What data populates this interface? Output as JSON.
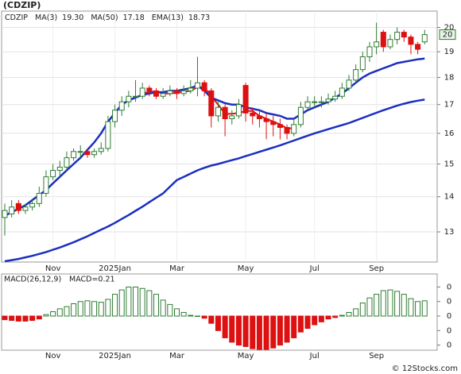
{
  "title": "(CDZIP)",
  "footer": "© 12Stocks.com",
  "chart_data": [
    {
      "type": "candlestick",
      "log_scale": true,
      "grid": true,
      "ticker": "CDZIP",
      "last_label": "20",
      "legend_color": "#2233bb",
      "categories": [
        null,
        null,
        null,
        null,
        null,
        null,
        null,
        "Nov",
        null,
        null,
        null,
        null,
        null,
        null,
        null,
        null,
        "2025Jan",
        null,
        null,
        null,
        null,
        null,
        null,
        null,
        null,
        "Mar",
        null,
        null,
        null,
        null,
        null,
        null,
        null,
        null,
        null,
        "May",
        null,
        null,
        null,
        null,
        null,
        null,
        null,
        null,
        null,
        "Jul",
        null,
        null,
        null,
        null,
        null,
        null,
        null,
        null,
        "Sep",
        null,
        null,
        null,
        null,
        null,
        null,
        null
      ],
      "open": [
        13.4,
        13.5,
        13.8,
        13.6,
        13.7,
        13.8,
        14.1,
        14.6,
        14.8,
        14.9,
        15.2,
        15.4,
        15.4,
        15.3,
        15.4,
        15.5,
        16.4,
        16.8,
        17.1,
        17.3,
        17.3,
        17.6,
        17.5,
        17.3,
        17.4,
        17.5,
        17.4,
        17.5,
        17.6,
        17.8,
        17.5,
        16.6,
        16.9,
        16.5,
        16.6,
        17.7,
        16.7,
        16.6,
        16.5,
        16.4,
        16.3,
        16.2,
        16.0,
        16.3,
        16.9,
        17.1,
        17.1,
        17.1,
        17.2,
        17.3,
        17.6,
        17.9,
        18.3,
        18.8,
        19.2,
        19.8,
        19.2,
        19.5,
        19.8,
        19.6,
        19.3,
        19.4
      ],
      "high": [
        13.8,
        13.9,
        13.9,
        13.8,
        13.9,
        14.3,
        14.8,
        15.0,
        15.1,
        15.4,
        15.5,
        15.6,
        15.5,
        15.5,
        15.7,
        16.6,
        17.0,
        17.3,
        17.5,
        17.9,
        17.8,
        17.7,
        17.6,
        17.6,
        17.7,
        17.6,
        17.7,
        17.9,
        18.8,
        17.9,
        17.6,
        17.1,
        17.0,
        16.8,
        17.2,
        17.8,
        16.9,
        16.8,
        16.7,
        16.6,
        16.5,
        16.3,
        16.5,
        17.1,
        17.3,
        17.3,
        17.3,
        17.4,
        17.5,
        17.8,
        18.1,
        18.5,
        19.0,
        19.4,
        20.2,
        19.9,
        19.7,
        20.0,
        19.9,
        19.7,
        19.4,
        19.9
      ],
      "low": [
        12.9,
        13.4,
        13.5,
        13.5,
        13.6,
        13.7,
        14.0,
        14.5,
        14.6,
        14.8,
        15.1,
        15.2,
        15.2,
        15.2,
        15.3,
        15.4,
        16.2,
        16.6,
        16.9,
        17.1,
        17.2,
        17.3,
        17.2,
        17.2,
        17.3,
        17.2,
        17.3,
        17.4,
        17.3,
        17.3,
        16.2,
        16.4,
        15.9,
        16.3,
        16.5,
        16.4,
        16.3,
        16.2,
        15.8,
        15.9,
        15.8,
        15.8,
        15.9,
        16.2,
        16.8,
        16.9,
        16.9,
        17.0,
        17.1,
        17.2,
        17.5,
        17.8,
        18.2,
        18.6,
        18.9,
        19.0,
        19.1,
        19.3,
        19.4,
        18.9,
        18.9,
        19.3
      ],
      "close": [
        13.6,
        13.7,
        13.6,
        13.7,
        13.8,
        14.1,
        14.6,
        14.8,
        14.9,
        15.2,
        15.4,
        15.4,
        15.3,
        15.4,
        15.5,
        16.4,
        16.8,
        17.1,
        17.3,
        17.3,
        17.6,
        17.5,
        17.3,
        17.4,
        17.5,
        17.4,
        17.5,
        17.6,
        17.8,
        17.5,
        16.6,
        16.9,
        16.5,
        16.6,
        17.0,
        16.7,
        16.6,
        16.5,
        16.4,
        16.3,
        16.2,
        16.0,
        16.3,
        16.9,
        17.1,
        17.1,
        17.1,
        17.2,
        17.3,
        17.6,
        17.9,
        18.3,
        18.8,
        19.2,
        19.4,
        19.2,
        19.5,
        19.8,
        19.6,
        19.3,
        19.1,
        19.7
      ],
      "up_color": "#2e7d32",
      "down_color": "#dd1111",
      "series": [
        {
          "name": "MA(3)",
          "last": "19.30",
          "color": "#dd1111",
          "width": 2,
          "values": [
            null,
            null,
            null,
            null,
            null,
            null,
            null,
            null,
            null,
            null,
            null,
            null,
            null,
            null,
            null,
            null,
            null,
            null,
            null,
            null,
            17.4,
            17.47,
            17.47,
            17.4,
            17.4,
            17.43,
            17.47,
            17.5,
            17.63,
            17.63,
            17.3,
            17.0,
            16.67,
            16.67,
            16.7,
            16.77,
            16.77,
            16.6,
            16.5,
            16.4,
            16.3,
            16.17,
            16.17,
            null,
            null,
            null,
            null,
            null,
            null,
            null,
            null,
            null,
            null,
            null,
            null,
            null,
            null,
            null,
            null,
            null,
            null,
            null
          ]
        },
        {
          "name": "MA(50)",
          "last": "17.18",
          "color": "#1a2fc0",
          "width": 2.5,
          "values": [
            12.22,
            12.25,
            12.28,
            12.32,
            12.36,
            12.41,
            12.46,
            12.52,
            12.58,
            12.65,
            12.72,
            12.8,
            12.88,
            12.97,
            13.06,
            13.15,
            13.25,
            13.36,
            13.47,
            13.59,
            13.71,
            13.84,
            13.97,
            14.1,
            14.3,
            14.5,
            14.6,
            14.7,
            14.8,
            14.88,
            14.95,
            15.0,
            15.06,
            15.12,
            15.18,
            15.25,
            15.32,
            15.39,
            15.46,
            15.53,
            15.6,
            15.68,
            15.76,
            15.84,
            15.92,
            16.0,
            16.07,
            16.14,
            16.21,
            16.28,
            16.35,
            16.44,
            16.53,
            16.62,
            16.71,
            16.8,
            16.88,
            16.96,
            17.03,
            17.09,
            17.14,
            17.18
          ]
        },
        {
          "name": "EMA(13)",
          "last": "18.73",
          "color": "#1a2fc0",
          "width": 2.5,
          "values": [
            13.45,
            13.55,
            13.65,
            13.75,
            13.9,
            14.05,
            14.2,
            14.4,
            14.6,
            14.8,
            15.0,
            15.2,
            15.45,
            15.7,
            16.0,
            16.4,
            16.7,
            17.0,
            17.15,
            17.25,
            17.35,
            17.4,
            17.45,
            17.45,
            17.5,
            17.5,
            17.55,
            17.6,
            17.7,
            17.5,
            17.25,
            17.15,
            17.05,
            17.0,
            17.0,
            16.9,
            16.85,
            16.8,
            16.7,
            16.65,
            16.6,
            16.5,
            16.5,
            16.65,
            16.8,
            16.9,
            17.0,
            17.1,
            17.25,
            17.4,
            17.6,
            17.8,
            18.0,
            18.15,
            18.25,
            18.35,
            18.45,
            18.55,
            18.6,
            18.65,
            18.7,
            18.73
          ]
        }
      ],
      "ylim": [
        12.2,
        20.7
      ],
      "yticks": [
        13,
        14,
        15,
        16,
        17,
        18,
        19,
        20
      ]
    },
    {
      "type": "bar",
      "name": "MACD(26,12,9)",
      "value_label": "MACD=0.21",
      "pos_color": "#2e7d32",
      "neg_color": "#dd1111",
      "values": [
        -0.05,
        -0.06,
        -0.07,
        -0.07,
        -0.06,
        -0.04,
        0.02,
        0.06,
        0.1,
        0.13,
        0.17,
        0.2,
        0.21,
        0.2,
        0.19,
        0.23,
        0.3,
        0.36,
        0.4,
        0.4,
        0.38,
        0.35,
        0.3,
        0.22,
        0.16,
        0.1,
        0.05,
        0.01,
        0.0,
        -0.03,
        -0.1,
        -0.2,
        -0.3,
        -0.36,
        -0.4,
        -0.42,
        -0.45,
        -0.46,
        -0.46,
        -0.44,
        -0.4,
        -0.36,
        -0.3,
        -0.22,
        -0.17,
        -0.12,
        -0.08,
        -0.04,
        -0.02,
        0.01,
        0.05,
        0.1,
        0.18,
        0.25,
        0.3,
        0.35,
        0.36,
        0.34,
        0.3,
        0.24,
        0.2,
        0.21
      ],
      "ylim": [
        -0.47,
        0.58
      ],
      "yticks": [
        {
          "value": 0.4,
          "label": "0"
        },
        {
          "value": 0.2,
          "label": "0"
        },
        {
          "value": 0,
          "label": "0"
        },
        {
          "value": -0.2,
          "label": "0"
        },
        {
          "value": -0.4,
          "label": "0"
        }
      ]
    }
  ]
}
